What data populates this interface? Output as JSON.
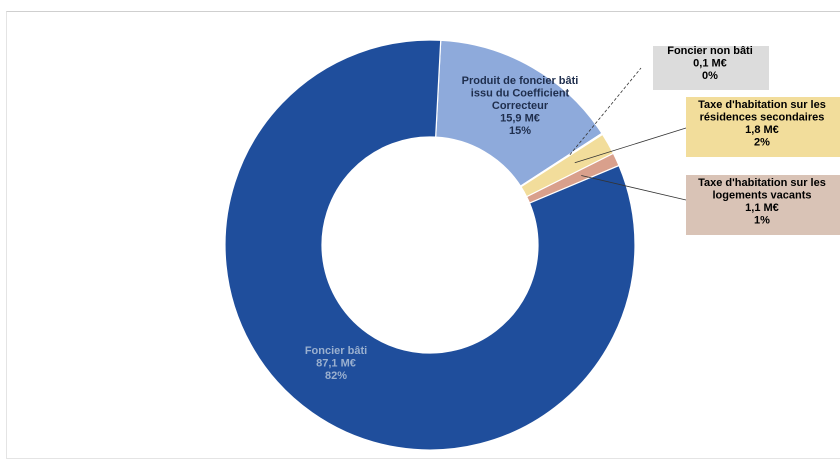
{
  "chart_data": {
    "type": "pie",
    "style": "donut",
    "legend": "none (labels placed next to slices, with leader lines for small slices)",
    "slices": [
      {
        "label_lines": [
          "Produit de foncier bâti",
          "issu du Coefficient",
          "Correcteur"
        ],
        "amount": "15,9 M€",
        "percent": "15%",
        "value": 15.9,
        "color": "#8eaadb",
        "label_bg": "",
        "text_color": "#1f2e4d"
      },
      {
        "label_lines": [
          "Foncier non bâti"
        ],
        "amount": "0,1 M€",
        "percent": "0%",
        "value": 0.1,
        "color": "#a5a5a5",
        "label_bg": "#dcdcdc",
        "text_color": "#000000"
      },
      {
        "label_lines": [
          "Taxe d'habitation sur les",
          "résidences secondaires"
        ],
        "amount": "1,8 M€",
        "percent": "2%",
        "value": 1.8,
        "color": "#f2dd9b",
        "label_bg": "#f2dd9b",
        "text_color": "#000000"
      },
      {
        "label_lines": [
          "Taxe d'habitation sur les",
          "logements vacants"
        ],
        "amount": "1,1 M€",
        "percent": "1%",
        "value": 1.1,
        "color": "#d9a08c",
        "label_bg": "#d9c3b6",
        "text_color": "#000000"
      },
      {
        "label_lines": [
          "Foncier bâti"
        ],
        "amount": "87,1 M€",
        "percent": "82%",
        "value": 87.1,
        "color": "#1f4e9c",
        "label_bg": "",
        "text_color": "#9ab0cf"
      }
    ]
  }
}
